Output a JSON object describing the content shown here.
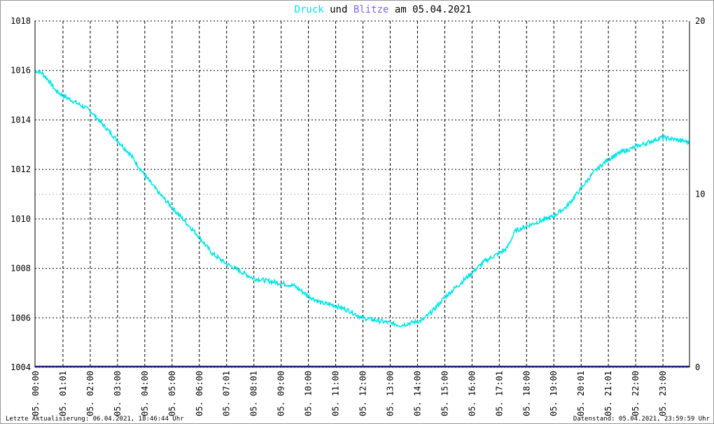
{
  "chart_data": {
    "type": "line",
    "title_parts": [
      {
        "text": "Druck",
        "color": "#00e5e5"
      },
      {
        "text": " und ",
        "color": "#000000"
      },
      {
        "text": "Blitze",
        "color": "#7b68ee"
      },
      {
        "text": " am 05.04.2021",
        "color": "#000000"
      }
    ],
    "y_left": {
      "ylim": [
        1004,
        1018
      ],
      "ticks": [
        "1004",
        "1006",
        "1008",
        "1010",
        "1012",
        "1014",
        "1016",
        "1018"
      ]
    },
    "y_right": {
      "ylim": [
        0,
        20
      ],
      "ticks": [
        "0",
        "10",
        "20"
      ]
    },
    "x_ticks": [
      "05. 00:00",
      "05. 01:01",
      "05. 02:00",
      "05. 03:00",
      "05. 04:00",
      "05. 05:00",
      "05. 06:00",
      "05. 07:01",
      "05. 08:01",
      "05. 09:00",
      "05. 10:00",
      "05. 11:00",
      "05. 12:00",
      "05. 13:00",
      "05. 14:00",
      "05. 15:00",
      "05. 16:00",
      "05. 17:01",
      "05. 18:00",
      "05. 19:00",
      "05. 20:01",
      "05. 21:01",
      "05. 22:00",
      "05. 23:00"
    ],
    "grid": true,
    "series": [
      {
        "color": "#00e5e5",
        "axis": "left",
        "x_hours": [
          0,
          0.25,
          0.5,
          0.75,
          1.0,
          1.5,
          2.0,
          2.5,
          3.0,
          3.5,
          4.0,
          4.5,
          5.0,
          5.5,
          6.0,
          6.5,
          7.0,
          7.5,
          8.0,
          8.5,
          9.0,
          9.5,
          10.0,
          10.5,
          11.0,
          11.5,
          12.0,
          12.5,
          13.0,
          13.4,
          13.8,
          14.2,
          14.6,
          15.0,
          15.5,
          16.0,
          16.5,
          17.0,
          17.3,
          17.6,
          18.0,
          18.5,
          19.0,
          19.5,
          20.0,
          20.5,
          21.0,
          21.5,
          22.0,
          22.5,
          23.0,
          23.5,
          23.99
        ],
        "values": [
          1016.0,
          1015.9,
          1015.6,
          1015.2,
          1015.0,
          1014.7,
          1014.4,
          1013.8,
          1013.2,
          1012.6,
          1011.8,
          1011.1,
          1010.5,
          1009.9,
          1009.3,
          1008.6,
          1008.2,
          1007.9,
          1007.6,
          1007.5,
          1007.4,
          1007.3,
          1006.9,
          1006.6,
          1006.5,
          1006.3,
          1006.0,
          1005.9,
          1005.8,
          1005.7,
          1005.8,
          1005.9,
          1006.3,
          1006.8,
          1007.3,
          1007.8,
          1008.3,
          1008.6,
          1008.8,
          1009.5,
          1009.7,
          1009.9,
          1010.1,
          1010.5,
          1011.2,
          1011.9,
          1012.4,
          1012.7,
          1012.9,
          1013.1,
          1013.3,
          1013.2,
          1013.1
        ]
      },
      {
        "color": "#1a1a7a",
        "axis": "right",
        "x_hours": [
          0,
          24
        ],
        "values": [
          0,
          0
        ]
      }
    ]
  },
  "footer": {
    "left": "Letzte Aktualisierung: 06.04.2021, 18:46:44 Uhr",
    "right": "Datenstand: 05.04.2021, 23:59:59 Uhr"
  }
}
